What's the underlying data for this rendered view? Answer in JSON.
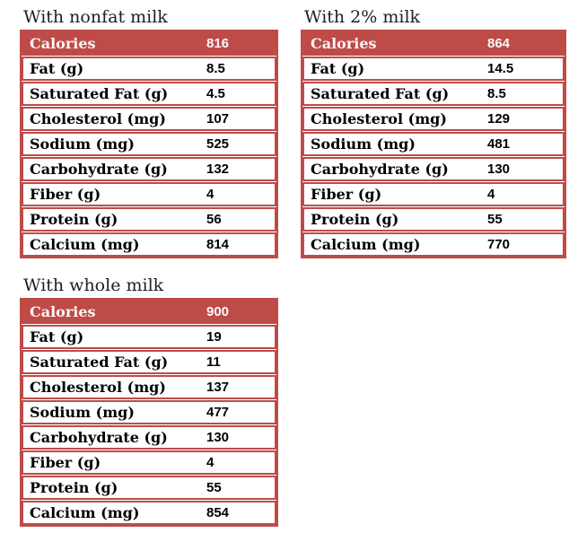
{
  "colors": {
    "accent": "#BE4B48",
    "header_text": "#FCF8F6",
    "label_text": "#000000",
    "title_text": "#1F1F1F",
    "row_bg": "#FFFFFF"
  },
  "chart_data": [
    {
      "type": "table",
      "title": "With nonfat milk",
      "header_row": {
        "label": "Calories",
        "value": 816
      },
      "rows": [
        {
          "label": "Fat (g)",
          "value": 8.5
        },
        {
          "label": "Saturated Fat (g)",
          "value": 4.5
        },
        {
          "label": "Cholesterol (mg)",
          "value": 107
        },
        {
          "label": "Sodium (mg)",
          "value": 525
        },
        {
          "label": "Carbohydrate (g)",
          "value": 132
        },
        {
          "label": "Fiber (g)",
          "value": 4
        },
        {
          "label": "Protein (g)",
          "value": 56
        },
        {
          "label": "Calcium (mg)",
          "value": 814
        }
      ]
    },
    {
      "type": "table",
      "title": "With 2% milk",
      "header_row": {
        "label": "Calories",
        "value": 864
      },
      "rows": [
        {
          "label": "Fat (g)",
          "value": 14.5
        },
        {
          "label": "Saturated Fat (g)",
          "value": 8.5
        },
        {
          "label": "Cholesterol (mg)",
          "value": 129
        },
        {
          "label": "Sodium (mg)",
          "value": 481
        },
        {
          "label": "Carbohydrate (g)",
          "value": 130
        },
        {
          "label": "Fiber (g)",
          "value": 4
        },
        {
          "label": "Protein (g)",
          "value": 55
        },
        {
          "label": "Calcium (mg)",
          "value": 770
        }
      ]
    },
    {
      "type": "table",
      "title": "With whole milk",
      "header_row": {
        "label": "Calories",
        "value": 900
      },
      "rows": [
        {
          "label": "Fat (g)",
          "value": 19
        },
        {
          "label": "Saturated Fat (g)",
          "value": 11
        },
        {
          "label": "Cholesterol (mg)",
          "value": 137
        },
        {
          "label": "Sodium (mg)",
          "value": 477
        },
        {
          "label": "Carbohydrate (g)",
          "value": 130
        },
        {
          "label": "Fiber (g)",
          "value": 4
        },
        {
          "label": "Protein (g)",
          "value": 55
        },
        {
          "label": "Calcium (mg)",
          "value": 854
        }
      ]
    }
  ]
}
